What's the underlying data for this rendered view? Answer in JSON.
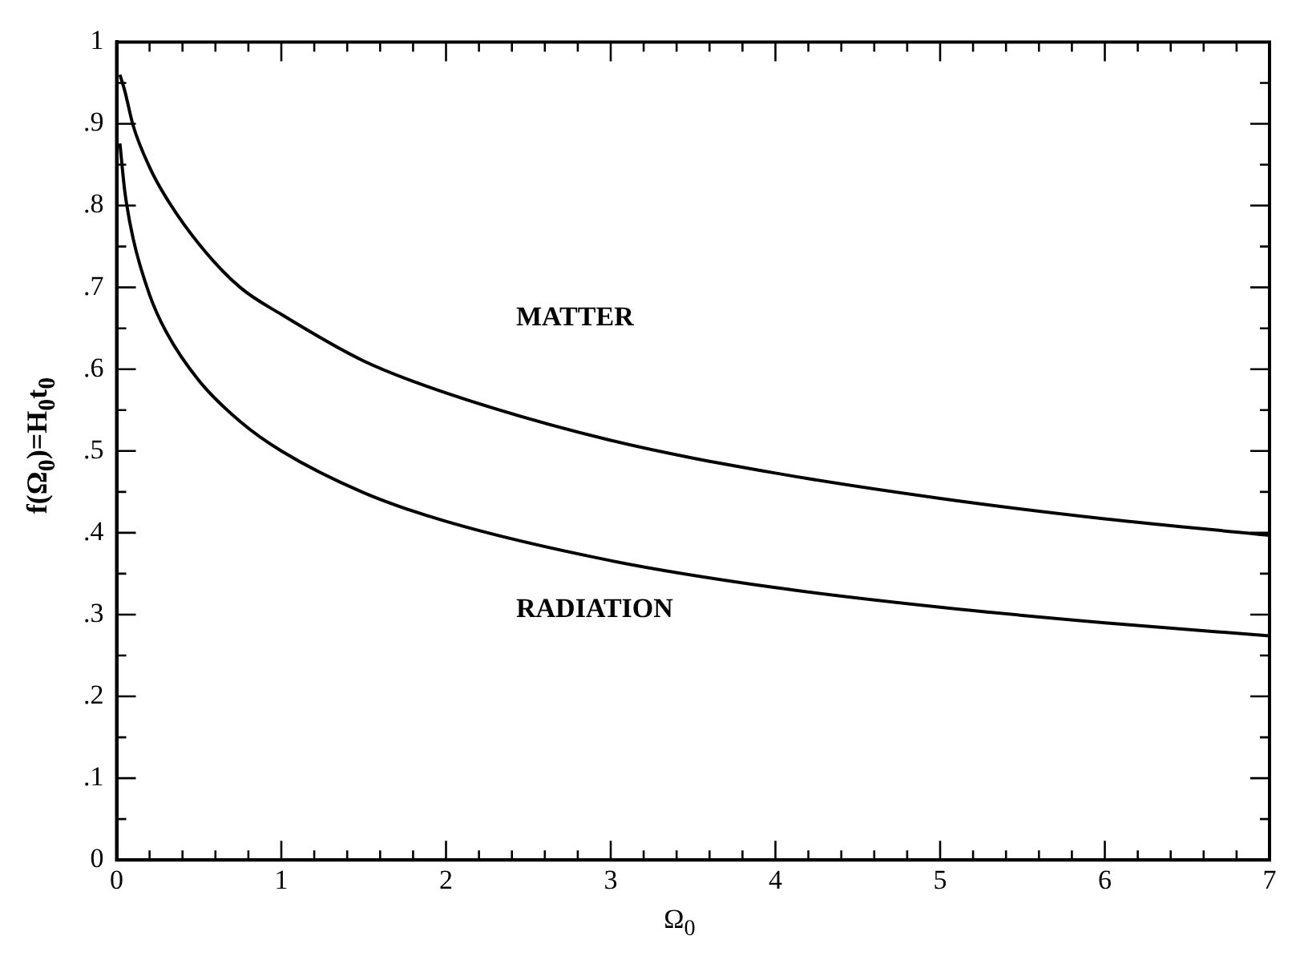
{
  "chart_data": {
    "type": "line",
    "xlabel": "Ω$_{0}$",
    "ylabel": "f(Ω$_{0}$)=H$_{0}$t$_{0}$",
    "x": [
      0.02,
      0.05,
      0.1,
      0.2,
      0.3,
      0.5,
      0.75,
      1,
      1.5,
      2,
      3,
      4,
      5,
      6,
      7
    ],
    "series": [
      {
        "color": "#000000",
        "values": [
          0.96,
          0.94,
          0.898,
          0.847,
          0.81,
          0.753,
          0.7,
          0.667,
          0.61,
          0.571,
          0.513,
          0.473,
          0.442,
          0.417,
          0.397
        ]
      },
      {
        "color": "#000000",
        "values": [
          0.876,
          0.817,
          0.76,
          0.691,
          0.646,
          0.586,
          0.536,
          0.5,
          0.449,
          0.414,
          0.366,
          0.333,
          0.309,
          0.29,
          0.274
        ]
      }
    ],
    "xlim": [
      0,
      7
    ],
    "xticks": [
      0,
      1,
      2,
      3,
      4,
      5,
      6,
      7
    ],
    "ylim": [
      0,
      1
    ],
    "yticks": [
      0,
      {
        "value": 0.1,
        "label": ".1"
      },
      {
        "value": 0.2,
        "label": ".2"
      },
      {
        "value": 0.3,
        "label": ".3"
      },
      {
        "value": 0.4,
        "label": ".4"
      },
      {
        "value": 0.5,
        "label": ".5"
      },
      {
        "value": 0.6,
        "label": ".6"
      },
      {
        "value": 0.7,
        "label": ".7"
      },
      {
        "value": 0.8,
        "label": ".8"
      },
      {
        "value": 0.9,
        "label": ".9"
      },
      1
    ],
    "annotations": [
      "MATTER",
      "RADIATION"
    ],
    "grid": false,
    "marker": "none",
    "line_style": "solid"
  }
}
